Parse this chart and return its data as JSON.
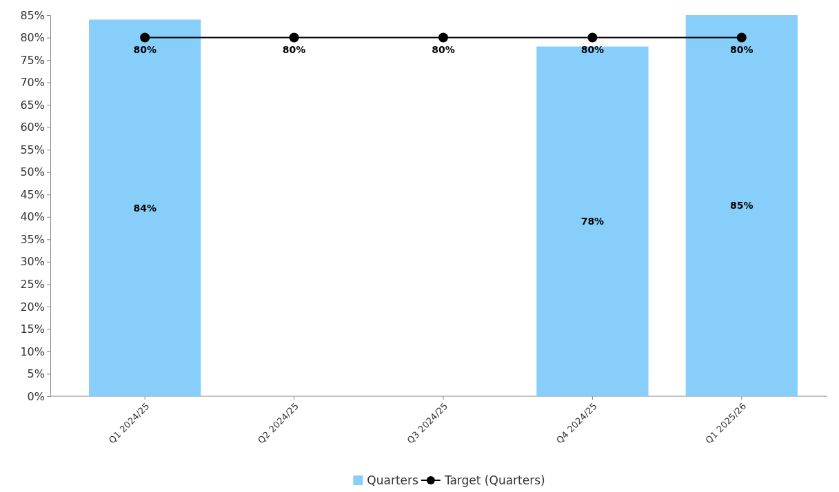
{
  "chart_data": {
    "type": "bar",
    "categories": [
      "Q1 2024/25",
      "Q2 2024/25",
      "Q3 2024/25",
      "Q4 2024/25",
      "Q1 2025/26"
    ],
    "series": [
      {
        "name": "Quarters",
        "color": "#87cefa",
        "values": [
          84,
          null,
          null,
          78,
          85
        ],
        "value_labels": [
          "84%",
          null,
          null,
          "78%",
          "85%"
        ]
      },
      {
        "name": "Target (Quarters)",
        "type": "line",
        "color": "#000000",
        "marker": "circle",
        "values": [
          80,
          80,
          80,
          80,
          80
        ],
        "value_labels": [
          "80%",
          "80%",
          "80%",
          "80%",
          "80%"
        ]
      }
    ],
    "ylim": [
      0,
      85
    ],
    "yticks": [
      {
        "value": 0,
        "label": "0%"
      },
      {
        "value": 5,
        "label": "5%"
      },
      {
        "value": 10,
        "label": "10%"
      },
      {
        "value": 15,
        "label": "15%"
      },
      {
        "value": 20,
        "label": "20%"
      },
      {
        "value": 25,
        "label": "25%"
      },
      {
        "value": 30,
        "label": "30%"
      },
      {
        "value": 35,
        "label": "35%"
      },
      {
        "value": 40,
        "label": "40%"
      },
      {
        "value": 45,
        "label": "45%"
      },
      {
        "value": 50,
        "label": "50%"
      },
      {
        "value": 55,
        "label": "55%"
      },
      {
        "value": 60,
        "label": "60%"
      },
      {
        "value": 65,
        "label": "65%"
      },
      {
        "value": 70,
        "label": "70%"
      },
      {
        "value": 75,
        "label": "75%"
      },
      {
        "value": 80,
        "label": "80%"
      },
      {
        "value": 85,
        "label": "85%"
      }
    ],
    "grid": false,
    "legend": "bottom"
  }
}
